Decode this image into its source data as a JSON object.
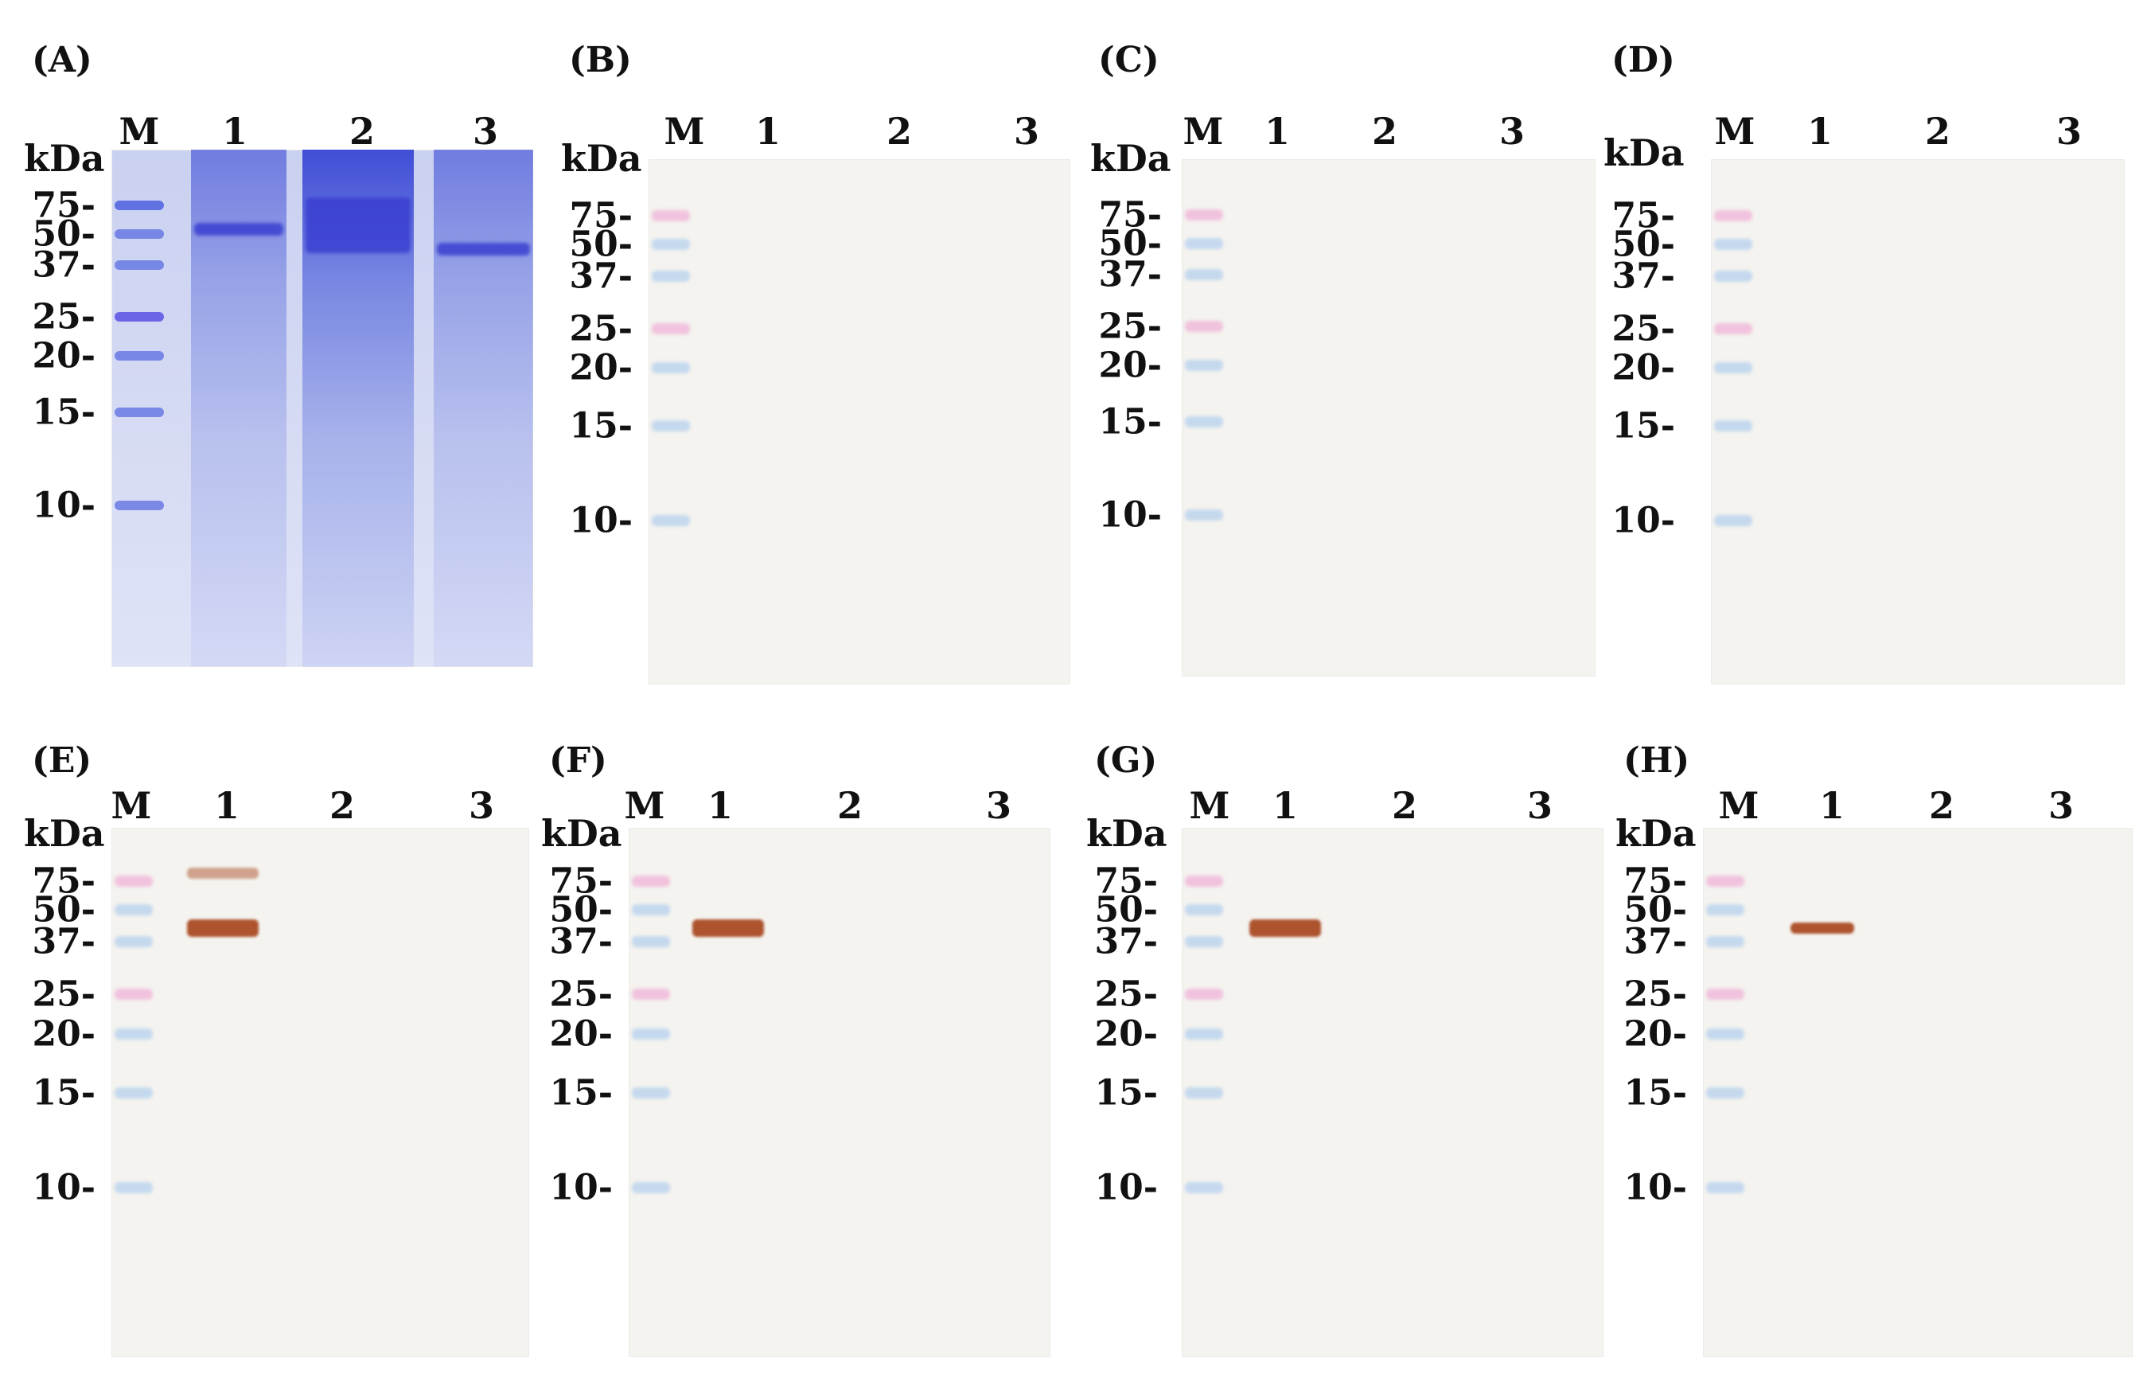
{
  "figure": {
    "mw_unit": "kDa",
    "marker_label": "M",
    "lane_labels": [
      "1",
      "2",
      "3"
    ],
    "mw_markers": [
      "75",
      "50",
      "37",
      "25",
      "20",
      "15",
      "10"
    ],
    "colors": {
      "coomassie_band": "#3a3fd0",
      "coomassie_bg": "#d4d9f3",
      "membrane_bg": "#f4f3ef",
      "marker_blue": "#9ec3ee",
      "marker_pink": "#ef9bd0",
      "immuno_band": "#a6421a"
    }
  },
  "panels": [
    {
      "label": "(A)",
      "type": "coomassie-gel"
    },
    {
      "label": "(B)",
      "type": "western-blot"
    },
    {
      "label": "(C)",
      "type": "western-blot"
    },
    {
      "label": "(D)",
      "type": "western-blot"
    },
    {
      "label": "(E)",
      "type": "western-blot",
      "reactive_lane": "1",
      "bands_kDa": [
        65,
        33
      ]
    },
    {
      "label": "(F)",
      "type": "western-blot",
      "reactive_lane": "1",
      "bands_kDa": [
        33
      ]
    },
    {
      "label": "(G)",
      "type": "western-blot",
      "reactive_lane": "1",
      "bands_kDa": [
        33
      ]
    },
    {
      "label": "(H)",
      "type": "western-blot",
      "reactive_lane": "1",
      "bands_kDa": [
        33
      ]
    }
  ]
}
